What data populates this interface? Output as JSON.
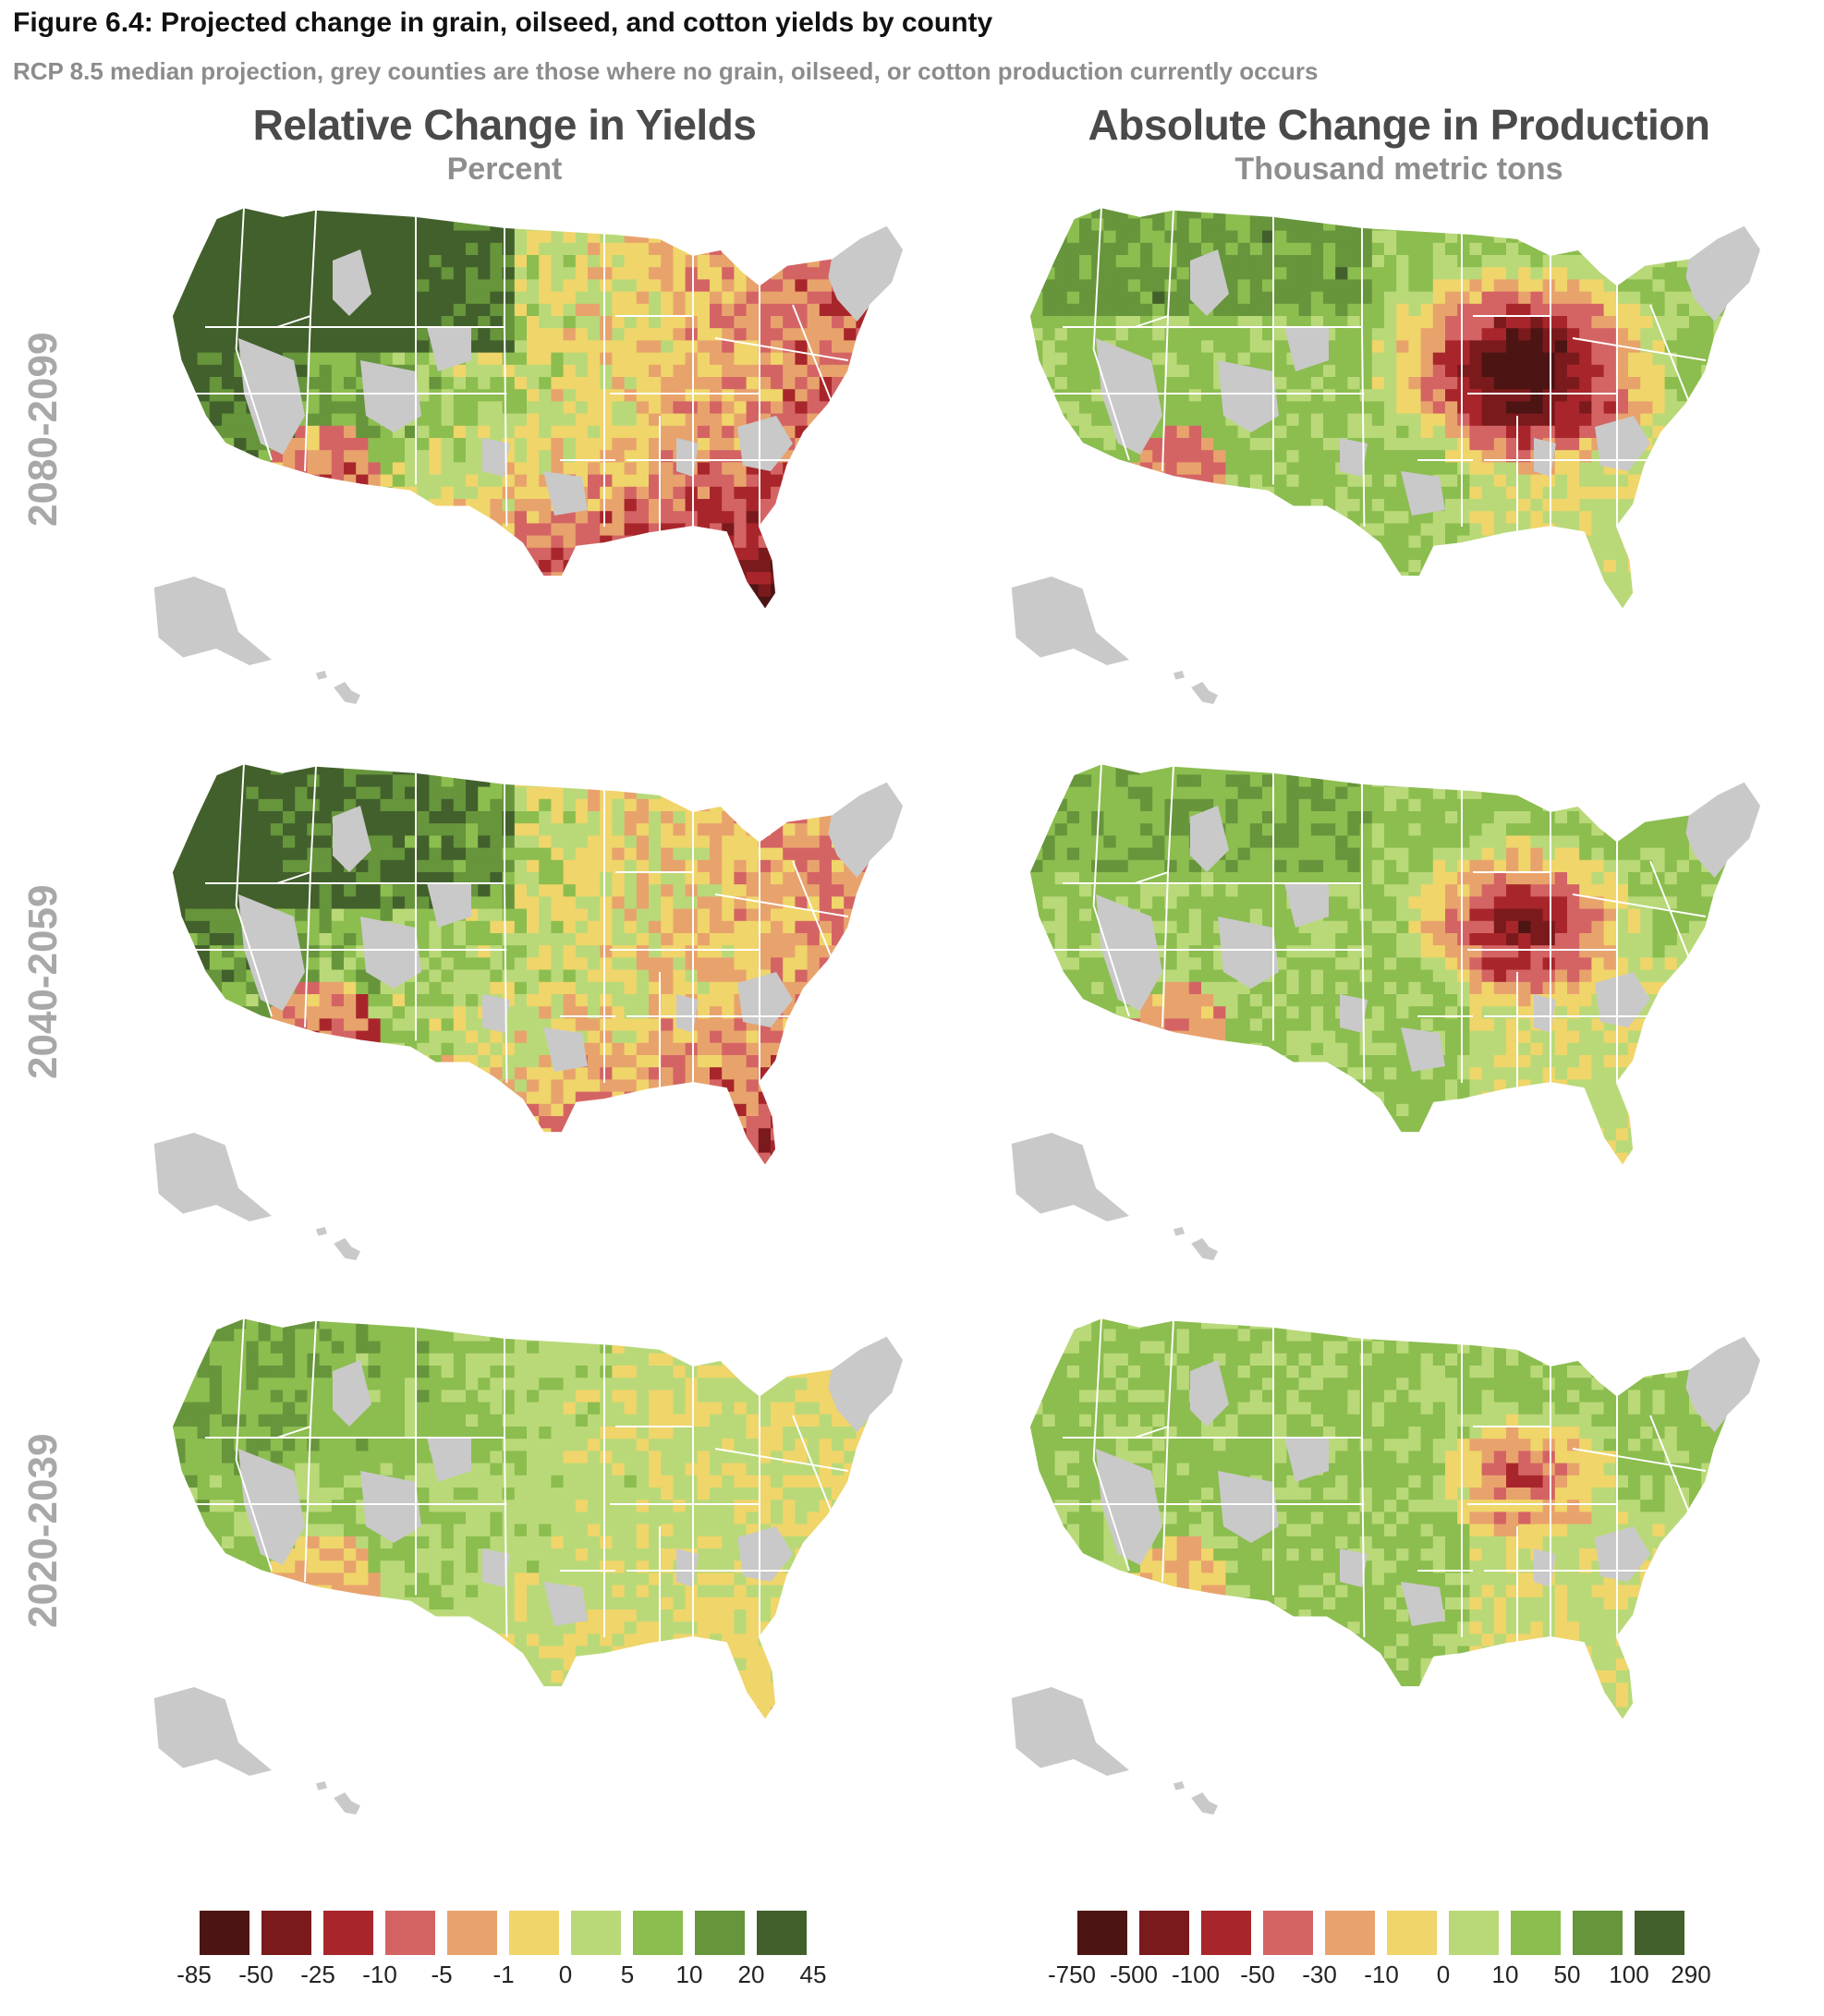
{
  "figure": {
    "title": "Figure 6.4: Projected change in grain, oilseed, and cotton yields by county",
    "subtitle": "RCP 8.5 median projection, grey counties are those where no grain, oilseed, or cotton production currently occurs"
  },
  "columns": [
    {
      "title": "Relative Change in Yields",
      "unit": "Percent"
    },
    {
      "title": "Absolute Change in Production",
      "unit": "Thousand metric tons"
    }
  ],
  "rows": [
    "2080-2099",
    "2040-2059",
    "2020-2039"
  ],
  "colors": {
    "no_production_grey": "#c9c9c9",
    "state_border": "#ffffff"
  },
  "legends": {
    "relative": {
      "colors": [
        "#4d1414",
        "#7b1a1d",
        "#a8262b",
        "#d46464",
        "#e8a36d",
        "#f0d56a",
        "#b9d979",
        "#8cbd4f",
        "#66953c",
        "#42602c"
      ],
      "ticks": [
        "-85",
        "-50",
        "-25",
        "-10",
        "-5",
        "-1",
        "0",
        "5",
        "10",
        "20",
        "45"
      ]
    },
    "absolute": {
      "colors": [
        "#4d1414",
        "#7b1a1d",
        "#a8262b",
        "#d46464",
        "#e8a36d",
        "#f0d56a",
        "#b9d979",
        "#8cbd4f",
        "#66953c",
        "#42602c"
      ],
      "ticks": [
        "-750",
        "-500",
        "-100",
        "-50",
        "-30",
        "-10",
        "0",
        "10",
        "50",
        "100",
        "290"
      ]
    }
  },
  "maps": [
    {
      "period": "2080-2099",
      "measure": "relative",
      "severity": 3
    },
    {
      "period": "2080-2099",
      "measure": "absolute",
      "severity": 3
    },
    {
      "period": "2040-2059",
      "measure": "relative",
      "severity": 2
    },
    {
      "period": "2040-2059",
      "measure": "absolute",
      "severity": 2
    },
    {
      "period": "2020-2039",
      "measure": "relative",
      "severity": 1
    },
    {
      "period": "2020-2039",
      "measure": "absolute",
      "severity": 1
    }
  ]
}
